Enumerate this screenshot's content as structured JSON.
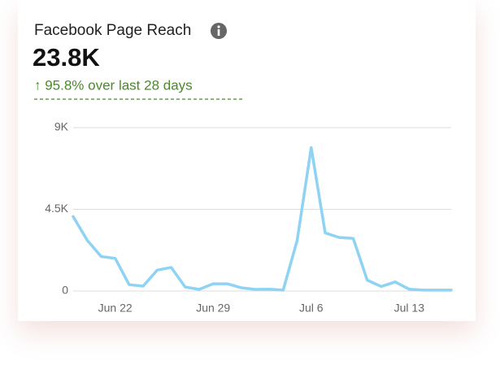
{
  "header": {
    "title": "Facebook Page Reach",
    "value": "23.8K",
    "change": "↑ 95.8% over last 28 days"
  },
  "chart_data": {
    "type": "line",
    "categories": [
      null,
      null,
      null,
      "Jun 22",
      null,
      null,
      null,
      null,
      null,
      null,
      "Jun 29",
      null,
      null,
      null,
      null,
      null,
      null,
      "Jul 6",
      null,
      null,
      null,
      null,
      null,
      null,
      "Jul 13",
      null,
      null,
      null
    ],
    "series": [
      {
        "name": "Page Reach",
        "color": "#8fd3f4",
        "values": [
          4100,
          2800,
          1900,
          1800,
          350,
          270,
          1150,
          1300,
          220,
          90,
          400,
          400,
          180,
          90,
          100,
          50,
          2800,
          7900,
          3200,
          2950,
          2900,
          600,
          250,
          500,
          100,
          50,
          50,
          50
        ]
      }
    ],
    "ylim": [
      0,
      9000
    ],
    "yticks": [
      0,
      {
        "value": 4500,
        "label": "4.5K"
      },
      {
        "value": 9000,
        "label": "9K"
      }
    ],
    "grid": true
  }
}
